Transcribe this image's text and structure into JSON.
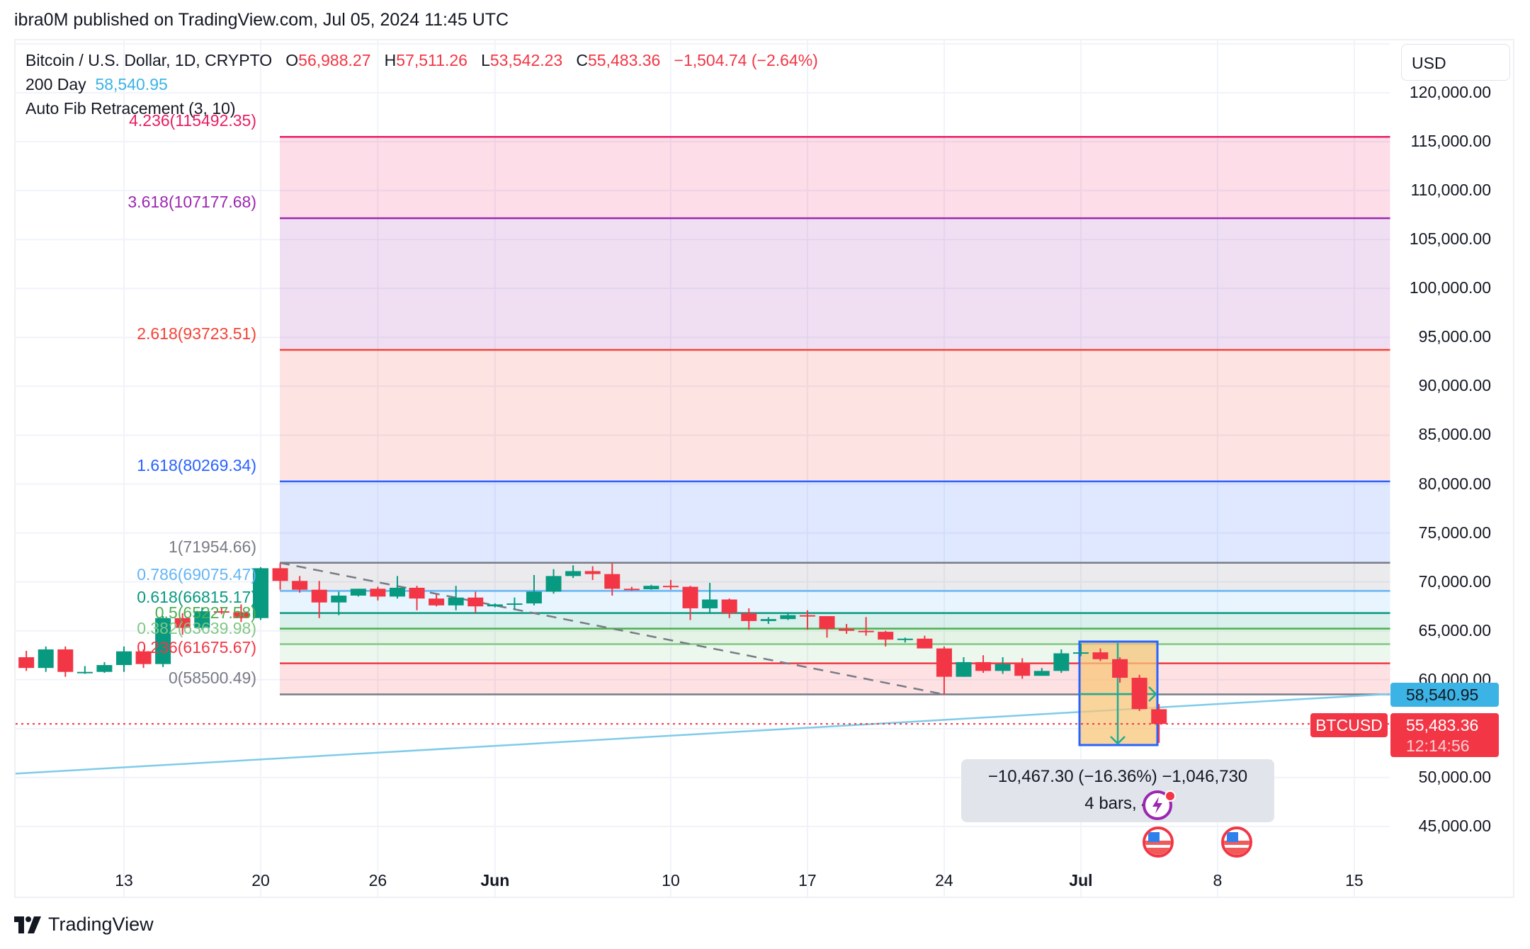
{
  "header": {
    "published": "ibra0M published on TradingView.com, Jul 05, 2024 11:45 UTC"
  },
  "legend": {
    "symbol": "Bitcoin / U.S. Dollar, 1D, CRYPTO",
    "o_label": "O",
    "o_value": "56,988.27",
    "h_label": "H",
    "h_value": "57,511.26",
    "l_label": "L",
    "l_value": "53,542.23",
    "c_label": "C",
    "c_value": "55,483.36",
    "change": "−1,504.74 (−2.64%)",
    "ma_label": "200 Day",
    "ma_value": "58,540.95",
    "fib_label": "Auto Fib Retracement (3, 10)"
  },
  "price_axis": {
    "currency_button": "USD",
    "ticks": [
      "120,000.00",
      "115,000.00",
      "110,000.00",
      "105,000.00",
      "100,000.00",
      "95,000.00",
      "90,000.00",
      "85,000.00",
      "80,000.00",
      "75,000.00",
      "70,000.00",
      "65,000.00",
      "60,000.00",
      "50,000.00",
      "45,000.00"
    ],
    "ma_tag": "58,540.95",
    "price_tag": "55,483.36",
    "countdown": "12:14:56",
    "symbol_tag": "BTCUSD"
  },
  "time_axis": {
    "labels": [
      {
        "text": "13",
        "day": 5,
        "bold": false
      },
      {
        "text": "20",
        "day": 12,
        "bold": false
      },
      {
        "text": "26",
        "day": 18,
        "bold": false
      },
      {
        "text": "Jun",
        "day": 24,
        "bold": true
      },
      {
        "text": "10",
        "day": 33,
        "bold": false
      },
      {
        "text": "17",
        "day": 40,
        "bold": false
      },
      {
        "text": "24",
        "day": 47,
        "bold": false
      },
      {
        "text": "Jul",
        "day": 54,
        "bold": true
      },
      {
        "text": "8",
        "day": 61,
        "bold": false
      },
      {
        "text": "15",
        "day": 68,
        "bold": false
      }
    ]
  },
  "measure_tooltip": {
    "line1": "−10,467.30 (−16.36%) −1,046,730",
    "line2": "4 bars, 4"
  },
  "colors": {
    "up": "#089981",
    "down": "#f23645",
    "ma": "#7fcbe9",
    "grid": "#f0f3fa",
    "measure_fill": "#f7c57a",
    "measure_border": "#2962ff"
  },
  "footer": {
    "brand": "TradingView"
  },
  "chart_data": {
    "type": "candlestick",
    "title": "Bitcoin / U.S. Dollar, 1D, CRYPTO",
    "xlabel": "",
    "ylabel": "USD",
    "ylim": [
      42500,
      123000
    ],
    "x_start": "2024-05-08",
    "dates": [
      "May 8",
      "May 9",
      "May 10",
      "May 11",
      "May 12",
      "May 13",
      "May 14",
      "May 15",
      "May 16",
      "May 17",
      "May 18",
      "May 19",
      "May 20",
      "May 21",
      "May 22",
      "May 23",
      "May 24",
      "May 25",
      "May 26",
      "May 27",
      "May 28",
      "May 29",
      "May 30",
      "May 31",
      "Jun 1",
      "Jun 2",
      "Jun 3",
      "Jun 4",
      "Jun 5",
      "Jun 6",
      "Jun 7",
      "Jun 8",
      "Jun 9",
      "Jun 10",
      "Jun 11",
      "Jun 12",
      "Jun 13",
      "Jun 14",
      "Jun 15",
      "Jun 16",
      "Jun 17",
      "Jun 18",
      "Jun 19",
      "Jun 20",
      "Jun 21",
      "Jun 22",
      "Jun 23",
      "Jun 24",
      "Jun 25",
      "Jun 26",
      "Jun 27",
      "Jun 28",
      "Jun 29",
      "Jun 30",
      "Jul 1",
      "Jul 2",
      "Jul 3",
      "Jul 4",
      "Jul 5"
    ],
    "ohlc": [
      [
        62300,
        62950,
        60900,
        61200
      ],
      [
        61200,
        63400,
        60800,
        63100
      ],
      [
        63100,
        63400,
        60300,
        60800
      ],
      [
        60800,
        61400,
        60600,
        60800
      ],
      [
        60800,
        61800,
        60700,
        61500
      ],
      [
        61500,
        63400,
        60800,
        62900
      ],
      [
        62900,
        63100,
        61200,
        61600
      ],
      [
        61600,
        66500,
        61300,
        66300
      ],
      [
        66300,
        66800,
        64600,
        65300
      ],
      [
        65300,
        67400,
        65100,
        67000
      ],
      [
        67000,
        67400,
        66700,
        66900
      ],
      [
        66900,
        67700,
        65900,
        66300
      ],
      [
        66300,
        71500,
        66100,
        71400
      ],
      [
        71400,
        71900,
        69200,
        70100
      ],
      [
        70100,
        70600,
        68900,
        69200
      ],
      [
        69200,
        70100,
        66300,
        67900
      ],
      [
        67900,
        69000,
        66600,
        68600
      ],
      [
        68600,
        69300,
        68500,
        69300
      ],
      [
        69300,
        69500,
        68100,
        68500
      ],
      [
        68500,
        70600,
        68300,
        69400
      ],
      [
        69400,
        69600,
        67100,
        68300
      ],
      [
        68300,
        68700,
        67500,
        67600
      ],
      [
        67600,
        69600,
        67100,
        68400
      ],
      [
        68400,
        69000,
        66800,
        67500
      ],
      [
        67500,
        67800,
        67400,
        67700
      ],
      [
        67700,
        68400,
        67200,
        67800
      ],
      [
        67800,
        70700,
        67600,
        69000
      ],
      [
        69000,
        71300,
        68800,
        70600
      ],
      [
        70600,
        71700,
        70400,
        71100
      ],
      [
        71100,
        71600,
        70200,
        70800
      ],
      [
        70800,
        71900,
        68600,
        69300
      ],
      [
        69300,
        69500,
        69100,
        69250
      ],
      [
        69250,
        69700,
        69200,
        69600
      ],
      [
        69600,
        70200,
        69200,
        69500
      ],
      [
        69500,
        69600,
        66100,
        67300
      ],
      [
        67300,
        69900,
        66900,
        68200
      ],
      [
        68200,
        68300,
        66300,
        66800
      ],
      [
        66800,
        67300,
        65100,
        66000
      ],
      [
        66000,
        66400,
        65700,
        66200
      ],
      [
        66200,
        66800,
        66100,
        66600
      ],
      [
        66600,
        67100,
        65100,
        66500
      ],
      [
        66500,
        66500,
        64300,
        65200
      ],
      [
        65200,
        65700,
        64700,
        65000
      ],
      [
        65000,
        66400,
        64500,
        64900
      ],
      [
        64900,
        65000,
        63400,
        64100
      ],
      [
        64100,
        64300,
        63800,
        64200
      ],
      [
        64200,
        64500,
        63200,
        63200
      ],
      [
        63200,
        63400,
        58500,
        60300
      ],
      [
        60300,
        62300,
        60300,
        61800
      ],
      [
        61800,
        62500,
        60700,
        60900
      ],
      [
        60900,
        62300,
        60600,
        61600
      ],
      [
        61600,
        62200,
        60100,
        60400
      ],
      [
        60400,
        61200,
        60400,
        60900
      ],
      [
        60900,
        63100,
        60700,
        62700
      ],
      [
        62700,
        63700,
        62400,
        62800
      ],
      [
        62800,
        63200,
        61900,
        62100
      ],
      [
        62100,
        62300,
        59700,
        60200
      ],
      [
        60200,
        60500,
        56800,
        57000
      ],
      [
        56988.27,
        57511.26,
        53542.23,
        55483.36
      ]
    ],
    "ma200": {
      "label": "200 Day",
      "start": 50400,
      "end": 58540.95
    },
    "fib_levels": [
      {
        "ratio": "4.236",
        "price": 115492.35,
        "label": "4.236(115492.35)",
        "color": "#e91e63",
        "fill": "rgba(233,30,99,0.15)"
      },
      {
        "ratio": "3.618",
        "price": 107177.68,
        "label": "3.618(107177.68)",
        "color": "#9c27b0",
        "fill": "rgba(156,39,176,0.15)"
      },
      {
        "ratio": "2.618",
        "price": 93723.51,
        "label": "2.618(93723.51)",
        "color": "#f44336",
        "fill": "rgba(244,67,54,0.15)"
      },
      {
        "ratio": "1.618",
        "price": 80269.34,
        "label": "1.618(80269.34)",
        "color": "#2962ff",
        "fill": "rgba(41,98,255,0.15)"
      },
      {
        "ratio": "1",
        "price": 71954.66,
        "label": "1(71954.66)",
        "color": "#787b86",
        "fill": "rgba(120,123,134,0.15)"
      },
      {
        "ratio": "0.786",
        "price": 69075.47,
        "label": "0.786(69075.47)",
        "color": "#64b5f6",
        "fill": "rgba(100,181,246,0.15)"
      },
      {
        "ratio": "0.618",
        "price": 66815.17,
        "label": "0.618(66815.17)",
        "color": "#089981",
        "fill": "rgba(8,153,129,0.15)"
      },
      {
        "ratio": "0.5",
        "price": 65227.58,
        "label": "0.5(65227.58)",
        "color": "#4caf50",
        "fill": "rgba(76,175,80,0.15)"
      },
      {
        "ratio": "0.382",
        "price": 63639.98,
        "label": "0.382(63639.98)",
        "color": "#81c784",
        "fill": "rgba(129,199,132,0.15)"
      },
      {
        "ratio": "0.236",
        "price": 61675.67,
        "label": "0.236(61675.67)",
        "color": "#f23645",
        "fill": "rgba(242,54,69,0.15)"
      },
      {
        "ratio": "0",
        "price": 58500.49,
        "label": "0(58500.49)",
        "color": "#787b86",
        "fill": null
      }
    ],
    "current_price": 55483.36
  }
}
